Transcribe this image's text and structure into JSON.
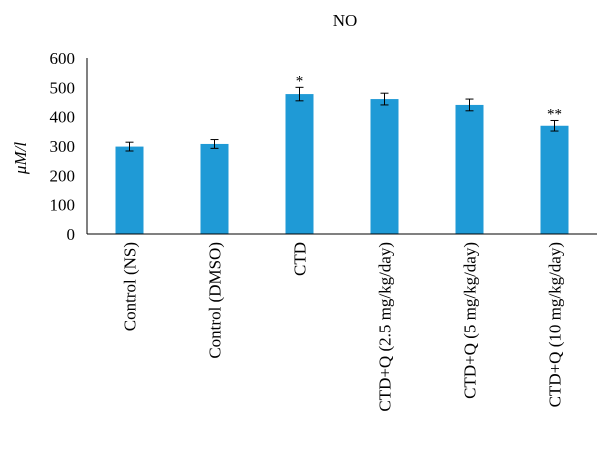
{
  "chart_data": {
    "type": "bar",
    "title": "NO",
    "ylabel": "μM/l",
    "xlabel": "",
    "ylim": [
      0,
      600
    ],
    "yticks": [
      0,
      100,
      200,
      300,
      400,
      500,
      600
    ],
    "categories": [
      "Control (NS)",
      "Control (DMSO)",
      "CTD",
      "CTD+Q (2.5 mg/kg/day)",
      "CTD+Q (5 mg/kg/day)",
      "CTD+Q (10 mg/kg/day)"
    ],
    "values": [
      298,
      307,
      477,
      460,
      440,
      369
    ],
    "errors": [
      15,
      15,
      23,
      20,
      20,
      18
    ],
    "annotations": [
      "",
      "",
      "*",
      "",
      "",
      "**"
    ],
    "bar_color": "#1f9ad6",
    "grid": false
  }
}
